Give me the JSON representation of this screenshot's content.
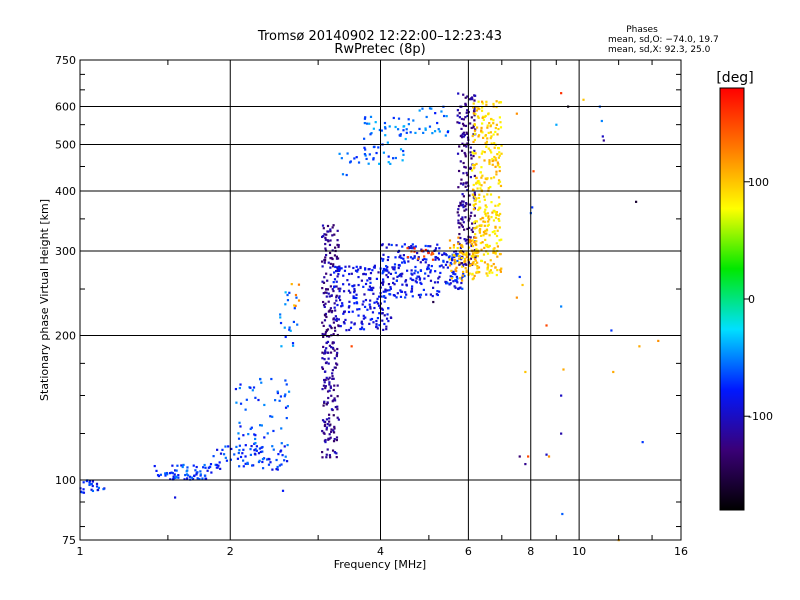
{
  "chart_data": {
    "type": "scatter",
    "title": "Tromsø 20140902 12:22:00–12:23:43",
    "subtitle": "RwPretec (8p)",
    "xlabel": "Frequency [MHz]",
    "ylabel": "Stationary phase Virtual Height [km]",
    "x_scale": "log",
    "y_scale": "log",
    "xlim": [
      1,
      16
    ],
    "ylim": [
      75,
      750
    ],
    "x_ticks": [
      1,
      2,
      4,
      6,
      8,
      10,
      16
    ],
    "y_ticks": [
      75,
      100,
      200,
      300,
      400,
      500,
      600,
      750
    ],
    "grid": true,
    "legend": {
      "title": "Phases",
      "line1": "mean, sd,O: −74.0, 19.7",
      "line2": "mean, sd,X:  92.3, 25.0"
    },
    "colorbar": {
      "label": "[deg]",
      "ticks": [
        100,
        0,
        -100
      ],
      "range": [
        -180,
        180
      ],
      "colors": [
        "#000000",
        "#3a0078",
        "#0018ff",
        "#00e0ff",
        "#00e800",
        "#ffff00",
        "#ff7a00",
        "#ff0000"
      ]
    },
    "series": [
      {
        "ranges": [
          {
            "x": [
              1.0,
              1.12
            ],
            "y": [
              94,
              100
            ],
            "c": -75,
            "n": 25
          },
          {
            "x": [
              1.4,
              1.85
            ],
            "y": [
              100,
              108
            ],
            "c": -70,
            "n": 70
          },
          {
            "x": [
              1.85,
              2.6
            ],
            "y": [
              105,
              118
            ],
            "c": -72,
            "n": 80
          },
          {
            "x": [
              2.05,
              2.65
            ],
            "y": [
              118,
              165
            ],
            "c": -65,
            "n": 55
          },
          {
            "x": [
              2.5,
              2.75
            ],
            "y": [
              190,
              250
            ],
            "c": -55,
            "n": 20
          },
          {
            "x": [
              3.05,
              3.3
            ],
            "y": [
              110,
              340
            ],
            "c": -120,
            "n": 260
          },
          {
            "x": [
              3.2,
              4.2
            ],
            "y": [
              205,
              280
            ],
            "c": -90,
            "n": 200
          },
          {
            "x": [
              4.0,
              5.3
            ],
            "y": [
              240,
              310
            ],
            "c": -85,
            "n": 180
          },
          {
            "x": [
              5.3,
              5.9
            ],
            "y": [
              250,
              300
            ],
            "c": -80,
            "n": 70
          },
          {
            "x": [
              5.7,
              6.2
            ],
            "y": [
              280,
              640
            ],
            "c": -120,
            "n": 190
          },
          {
            "x": [
              3.7,
              4.5
            ],
            "y": [
              455,
              575
            ],
            "c": -55,
            "n": 55
          },
          {
            "x": [
              4.5,
              5.5
            ],
            "y": [
              520,
              600
            ],
            "c": -60,
            "n": 30
          },
          {
            "x": [
              3.3,
              3.7
            ],
            "y": [
              430,
              480
            ],
            "c": -60,
            "n": 10
          }
        ]
      },
      {
        "ranges": [
          {
            "x": [
              6.1,
              7.0
            ],
            "y": [
              265,
              620
            ],
            "c": 95,
            "n": 320
          },
          {
            "x": [
              5.5,
              6.3
            ],
            "y": [
              260,
              320
            ],
            "c": 105,
            "n": 90
          },
          {
            "x": [
              4.5,
              5.1
            ],
            "y": [
              285,
              305
            ],
            "c": 150,
            "n": 15
          },
          {
            "x": [
              2.65,
              2.75
            ],
            "y": [
              230,
              260
            ],
            "c": 120,
            "n": 6
          }
        ]
      },
      {
        "points": [
          {
            "x": 8.0,
            "y": 360,
            "c": -60
          },
          {
            "x": 8.05,
            "y": 370,
            "c": -70
          },
          {
            "x": 7.6,
            "y": 265,
            "c": -70
          },
          {
            "x": 7.7,
            "y": 255,
            "c": 100
          },
          {
            "x": 7.5,
            "y": 240,
            "c": 120
          },
          {
            "x": 9.0,
            "y": 550,
            "c": -40
          },
          {
            "x": 9.2,
            "y": 640,
            "c": 160
          },
          {
            "x": 9.5,
            "y": 600,
            "c": -170
          },
          {
            "x": 10.2,
            "y": 620,
            "c": 100
          },
          {
            "x": 11.0,
            "y": 600,
            "c": -60
          },
          {
            "x": 11.1,
            "y": 560,
            "c": -50
          },
          {
            "x": 11.15,
            "y": 520,
            "c": -100
          },
          {
            "x": 11.2,
            "y": 510,
            "c": -120
          },
          {
            "x": 9.2,
            "y": 230,
            "c": -50
          },
          {
            "x": 9.3,
            "y": 170,
            "c": 110
          },
          {
            "x": 9.2,
            "y": 150,
            "c": -100
          },
          {
            "x": 9.2,
            "y": 125,
            "c": -110
          },
          {
            "x": 9.25,
            "y": 85,
            "c": -60
          },
          {
            "x": 7.6,
            "y": 112,
            "c": -130
          },
          {
            "x": 7.8,
            "y": 108,
            "c": -120
          },
          {
            "x": 7.9,
            "y": 112,
            "c": 150
          },
          {
            "x": 8.6,
            "y": 113,
            "c": -100
          },
          {
            "x": 8.7,
            "y": 112,
            "c": 120
          },
          {
            "x": 8.6,
            "y": 210,
            "c": 150
          },
          {
            "x": 11.6,
            "y": 205,
            "c": -70
          },
          {
            "x": 11.7,
            "y": 168,
            "c": 110
          },
          {
            "x": 13.0,
            "y": 380,
            "c": -160
          },
          {
            "x": 13.2,
            "y": 190,
            "c": 110
          },
          {
            "x": 13.4,
            "y": 120,
            "c": -70
          },
          {
            "x": 14.4,
            "y": 195,
            "c": 120
          },
          {
            "x": 3.5,
            "y": 190,
            "c": 150
          },
          {
            "x": 5.1,
            "y": 235,
            "c": -150
          },
          {
            "x": 7.8,
            "y": 168,
            "c": 100
          },
          {
            "x": 12.0,
            "y": 75,
            "c": 110
          },
          {
            "x": 7.5,
            "y": 580,
            "c": 120
          },
          {
            "x": 8.1,
            "y": 440,
            "c": 150
          },
          {
            "x": 1.55,
            "y": 92,
            "c": -90
          },
          {
            "x": 2.55,
            "y": 95,
            "c": -80
          }
        ]
      }
    ]
  }
}
